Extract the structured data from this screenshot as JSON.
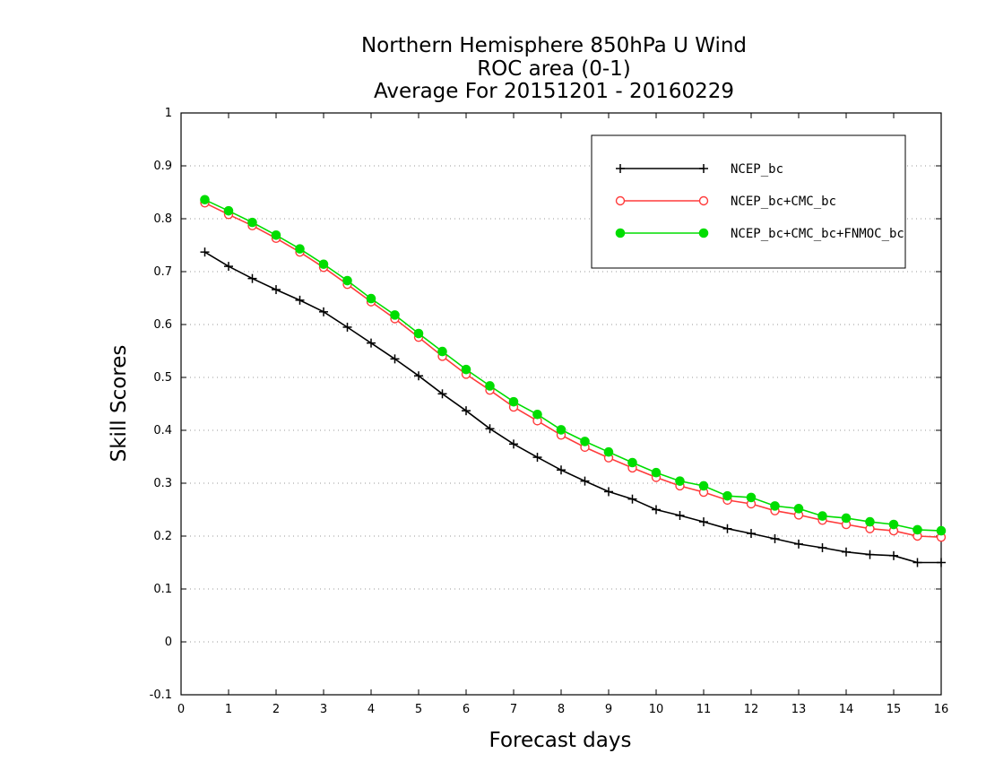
{
  "chart_data": {
    "type": "line",
    "title": [
      "Northern Hemisphere 850hPa U Wind",
      "ROC area (0-1)",
      "Average For 20151201 - 20160229"
    ],
    "xlabel": "Forecast days",
    "ylabel": "Skill Scores",
    "xlim": [
      0,
      16
    ],
    "ylim": [
      -0.1,
      1
    ],
    "xticks": [
      0,
      1,
      2,
      3,
      4,
      5,
      6,
      7,
      8,
      9,
      10,
      11,
      12,
      13,
      14,
      15,
      16
    ],
    "yticks": [
      -0.1,
      0,
      0.1,
      0.2,
      0.3,
      0.4,
      0.5,
      0.6,
      0.7,
      0.8,
      0.9,
      1
    ],
    "ytick_labels": [
      "-0.1",
      "0",
      "0.1",
      "0.2",
      "0.3",
      "0.4",
      "0.5",
      "0.6",
      "0.7",
      "0.8",
      "0.9",
      "1"
    ],
    "grid": "horizontal dotted",
    "legend_position": "top-right",
    "x": [
      0.5,
      1,
      1.5,
      2,
      2.5,
      3,
      3.5,
      4,
      4.5,
      5,
      5.5,
      6,
      6.5,
      7,
      7.5,
      8,
      8.5,
      9,
      9.5,
      10,
      10.5,
      11,
      11.5,
      12,
      12.5,
      13,
      13.5,
      14,
      14.5,
      15,
      15.5,
      16
    ],
    "series": [
      {
        "name": "NCEP_bc",
        "color": "#000000",
        "marker": "plus",
        "values": [
          0.737,
          0.71,
          0.687,
          0.666,
          0.646,
          0.624,
          0.595,
          0.565,
          0.535,
          0.503,
          0.469,
          0.437,
          0.403,
          0.374,
          0.349,
          0.325,
          0.304,
          0.284,
          0.27,
          0.25,
          0.239,
          0.227,
          0.214,
          0.205,
          0.195,
          0.185,
          0.178,
          0.17,
          0.165,
          0.163,
          0.15,
          0.15
        ]
      },
      {
        "name": "NCEP_bc+CMC_bc",
        "color": "#ff3b3b",
        "marker": "open-circle",
        "values": [
          0.83,
          0.808,
          0.787,
          0.763,
          0.737,
          0.708,
          0.676,
          0.643,
          0.611,
          0.576,
          0.54,
          0.506,
          0.476,
          0.444,
          0.418,
          0.391,
          0.368,
          0.348,
          0.329,
          0.311,
          0.295,
          0.283,
          0.268,
          0.261,
          0.248,
          0.24,
          0.23,
          0.222,
          0.214,
          0.21,
          0.2,
          0.198
        ]
      },
      {
        "name": "NCEP_bc+CMC_bc+FNMOC_bc",
        "color": "#00dd00",
        "marker": "filled-circle",
        "values": [
          0.836,
          0.815,
          0.793,
          0.769,
          0.743,
          0.714,
          0.683,
          0.649,
          0.618,
          0.583,
          0.549,
          0.515,
          0.484,
          0.454,
          0.43,
          0.401,
          0.379,
          0.359,
          0.339,
          0.32,
          0.304,
          0.295,
          0.276,
          0.273,
          0.257,
          0.252,
          0.238,
          0.234,
          0.227,
          0.222,
          0.212,
          0.21
        ]
      }
    ]
  }
}
